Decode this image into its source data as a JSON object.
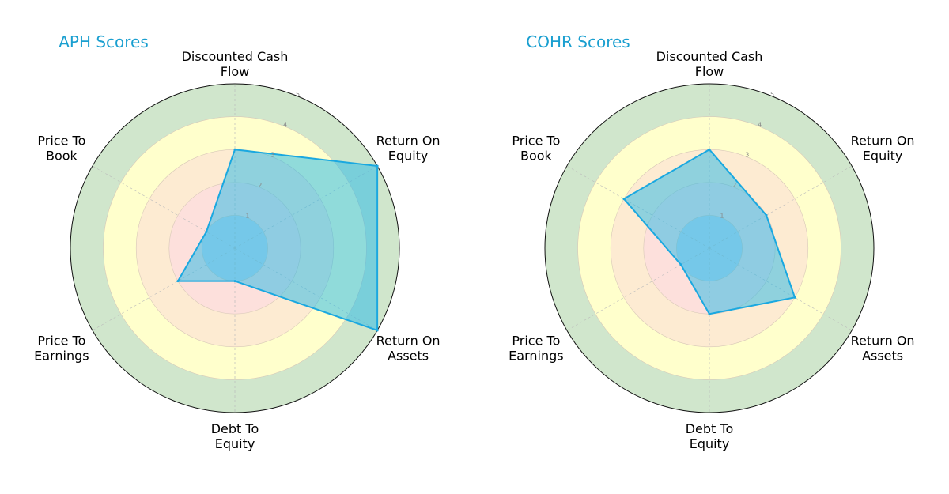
{
  "chart_data": [
    {
      "type": "radar",
      "title": "APH Scores",
      "categories": [
        [
          "Discounted Cash",
          "Flow"
        ],
        [
          "Return On",
          "Equity"
        ],
        [
          "Return On",
          "Assets"
        ],
        [
          "Debt To",
          "Equity"
        ],
        [
          "Price To",
          "Earnings"
        ],
        [
          "Price To",
          "Book"
        ]
      ],
      "values": [
        3,
        5,
        5,
        1,
        2,
        1
      ],
      "rlim": [
        0,
        5
      ],
      "rticks": [
        "1",
        "2",
        "3",
        "4",
        "5"
      ]
    },
    {
      "type": "radar",
      "title": "COHR Scores",
      "categories": [
        [
          "Discounted Cash",
          "Flow"
        ],
        [
          "Return On",
          "Equity"
        ],
        [
          "Return On",
          "Assets"
        ],
        [
          "Debt To",
          "Equity"
        ],
        [
          "Price To",
          "Earnings"
        ],
        [
          "Price To",
          "Book"
        ]
      ],
      "values": [
        3,
        2,
        3,
        2,
        1,
        3
      ],
      "rlim": [
        0,
        5
      ],
      "rticks": [
        "1",
        "2",
        "3",
        "4",
        "5"
      ]
    }
  ],
  "colors": {
    "bands": [
      "#c9d9ea",
      "#fde0dc",
      "#fdebd2",
      "#ffffcc",
      "#d0e6cc"
    ],
    "polygon_fill": "#22b8e8",
    "polygon_stroke": "#1aa8e0",
    "title": "#1a9fd0"
  }
}
